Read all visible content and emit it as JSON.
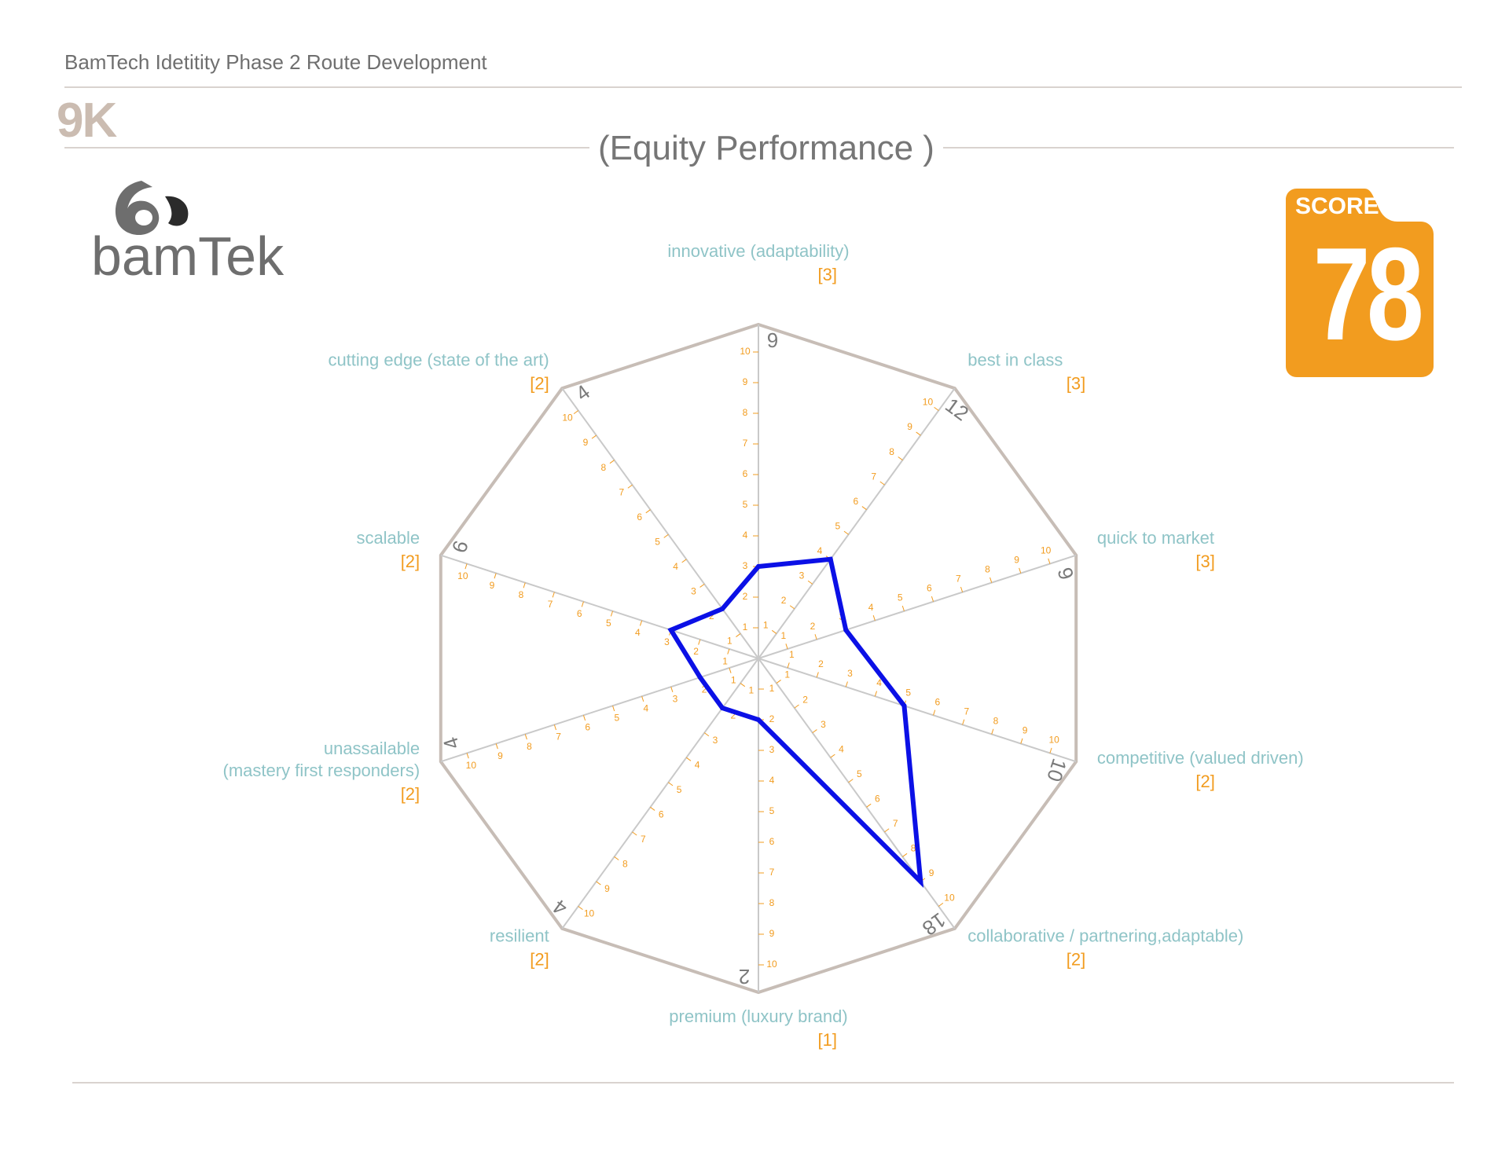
{
  "header": {
    "title": "BamTech Idetitity Phase 2 Route Development",
    "route_code": "9K"
  },
  "logo": {
    "text": "bamTek",
    "icon": "bamtek-logo-mark"
  },
  "score": {
    "label": "SCORE",
    "value": "78",
    "color": "#f29c1f"
  },
  "colors": {
    "series": "#0b10e6",
    "label": "#8fc4c7",
    "weight": "#f29c1f",
    "frame": "#c7bdb6",
    "axis": "#c9c9c9"
  },
  "chart_data": {
    "type": "radar",
    "title": "(Equity Performance )",
    "scale": [
      0,
      10
    ],
    "ticks": [
      1,
      2,
      3,
      4,
      5,
      6,
      7,
      8,
      9,
      10
    ],
    "axes": [
      {
        "label": "innovative (adaptability)",
        "weight": "[3]",
        "total": "9",
        "value": 3
      },
      {
        "label": "best in class",
        "weight": "[3]",
        "total": "12",
        "value": 4
      },
      {
        "label": "quick to market",
        "weight": "[3]",
        "total": "9",
        "value": 3
      },
      {
        "label": "competitive (valued driven)",
        "weight": "[2]",
        "total": "10",
        "value": 5
      },
      {
        "label": "collaborative / partnering,adaptable)",
        "weight": "[2]",
        "total": "18",
        "value": 9
      },
      {
        "label": "premium (luxury brand)",
        "weight": "[1]",
        "total": "2",
        "value": 2
      },
      {
        "label": "resilient",
        "weight": "[2]",
        "total": "4",
        "value": 2
      },
      {
        "label": "unassailable\n(mastery first responders)",
        "weight": "[2]",
        "total": "4",
        "value": 2
      },
      {
        "label": "scalable",
        "weight": "[2]",
        "total": "6",
        "value": 3
      },
      {
        "label": "cutting edge (state of the art)",
        "weight": "[2]",
        "total": "4",
        "value": 2
      }
    ]
  }
}
